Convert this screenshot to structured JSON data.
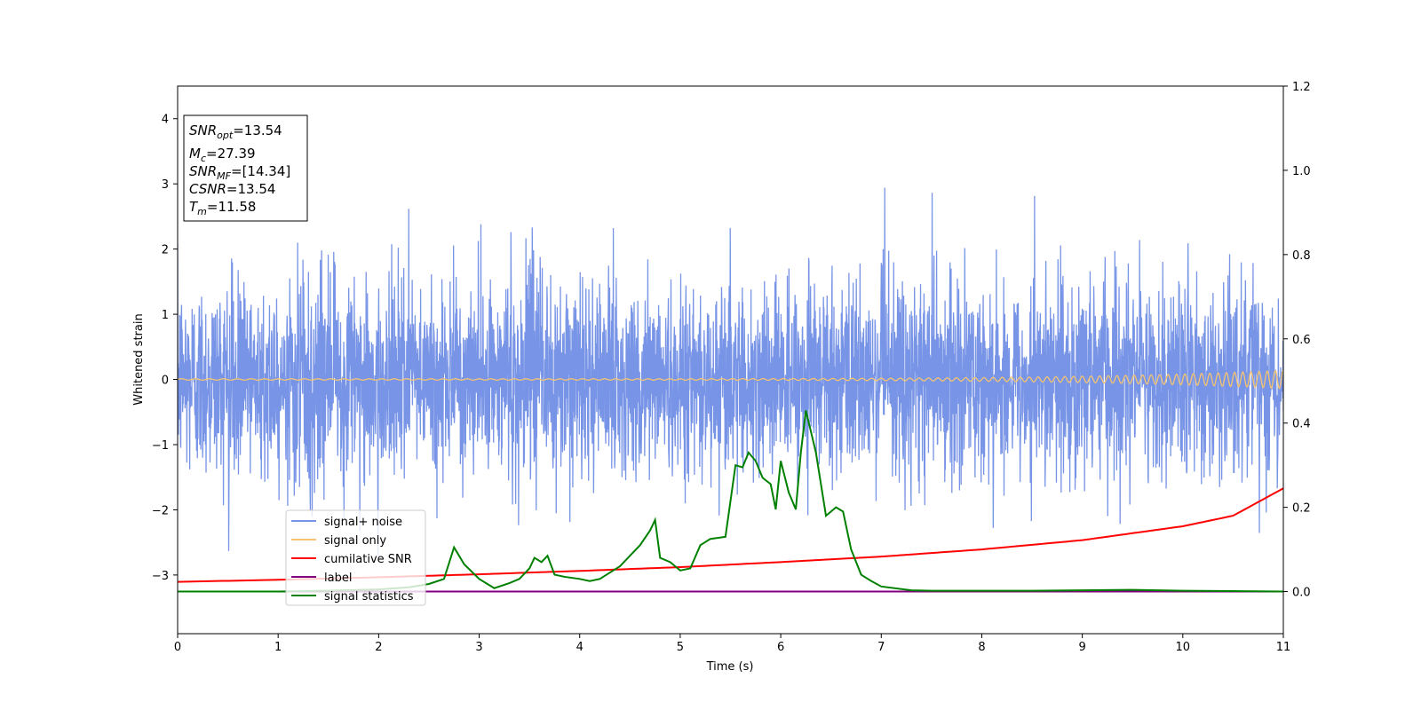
{
  "chart_data": {
    "type": "line",
    "xlabel": "Time (s)",
    "ylabel_left": "Whitened strain",
    "ylabel_right": "",
    "xlim": [
      0,
      11
    ],
    "ylim_left": [
      -3.9,
      4.5
    ],
    "ylim_right": [
      -0.1,
      1.2
    ],
    "x_ticks": [
      0,
      1,
      2,
      3,
      4,
      5,
      6,
      7,
      8,
      9,
      10,
      11
    ],
    "x_tick_labels": [
      "0",
      "1",
      "2",
      "3",
      "4",
      "5",
      "6",
      "7",
      "8",
      "9",
      "10",
      "11"
    ],
    "y_left_ticks": [
      -3,
      -2,
      -1,
      0,
      1,
      2,
      3,
      4
    ],
    "y_left_tick_labels": [
      "−3",
      "−2",
      "−1",
      "0",
      "1",
      "2",
      "3",
      "4"
    ],
    "y_right_ticks": [
      0.0,
      0.2,
      0.4,
      0.6,
      0.8,
      1.0,
      1.2
    ],
    "y_right_tick_labels": [
      "0.0",
      "0.2",
      "0.4",
      "0.6",
      "0.8",
      "1.0",
      "1.2"
    ],
    "grid": false,
    "legend_position": "lower-left",
    "annotation": {
      "lines": [
        {
          "sym": "SNR",
          "sub": "opt",
          "value": "=13.54"
        },
        {
          "sym": "M",
          "sub": "c",
          "value": "=27.39"
        },
        {
          "sym": "SNR",
          "sub": "MF",
          "value": "=[14.34]"
        },
        {
          "sym": "CSNR",
          "sub": "",
          "value": "=13.54"
        },
        {
          "sym": "T",
          "sub": "m",
          "value": "=11.58"
        }
      ]
    },
    "series": [
      {
        "name": "signal+ noise",
        "axis": "left",
        "color": "#7894e6",
        "kind": "noise",
        "std": 0.75,
        "approx_range": [
          -2.9,
          3.0
        ]
      },
      {
        "name": "signal only",
        "axis": "left",
        "color": "#f5c470",
        "kind": "chirp",
        "amplitude_start": 0.01,
        "amplitude_end": 0.14
      },
      {
        "name": "cumilative SNR",
        "axis": "right",
        "color": "#ff0000",
        "x": [
          0,
          1,
          2,
          3,
          4,
          5,
          6,
          7,
          8,
          9,
          10,
          10.5,
          11
        ],
        "y": [
          0.023,
          0.028,
          0.034,
          0.041,
          0.049,
          0.058,
          0.07,
          0.083,
          0.1,
          0.122,
          0.155,
          0.18,
          0.245
        ]
      },
      {
        "name": "label",
        "axis": "right",
        "color": "#800080",
        "x": [
          0,
          11
        ],
        "y": [
          0.0,
          0.0
        ]
      },
      {
        "name": "signal statistics",
        "axis": "right",
        "color": "#008000",
        "x": [
          0,
          0.5,
          1.0,
          1.5,
          2.0,
          2.3,
          2.5,
          2.65,
          2.75,
          2.85,
          3.0,
          3.15,
          3.3,
          3.4,
          3.5,
          3.55,
          3.62,
          3.68,
          3.75,
          3.85,
          4.0,
          4.1,
          4.2,
          4.3,
          4.4,
          4.5,
          4.6,
          4.7,
          4.75,
          4.8,
          4.9,
          5.0,
          5.1,
          5.2,
          5.3,
          5.45,
          5.55,
          5.62,
          5.68,
          5.75,
          5.82,
          5.9,
          5.95,
          6.0,
          6.08,
          6.15,
          6.2,
          6.25,
          6.35,
          6.45,
          6.55,
          6.62,
          6.7,
          6.8,
          6.9,
          7.0,
          7.3,
          7.5,
          8.0,
          8.5,
          9.0,
          9.5,
          10.0,
          10.5,
          11.0
        ],
        "y": [
          0.0,
          0.0,
          0.0,
          0.002,
          0.005,
          0.01,
          0.018,
          0.03,
          0.105,
          0.065,
          0.03,
          0.008,
          0.02,
          0.03,
          0.055,
          0.08,
          0.07,
          0.085,
          0.04,
          0.035,
          0.03,
          0.025,
          0.03,
          0.045,
          0.06,
          0.085,
          0.11,
          0.145,
          0.17,
          0.08,
          0.07,
          0.05,
          0.055,
          0.11,
          0.125,
          0.13,
          0.3,
          0.295,
          0.33,
          0.31,
          0.27,
          0.255,
          0.195,
          0.31,
          0.235,
          0.195,
          0.33,
          0.43,
          0.33,
          0.18,
          0.2,
          0.19,
          0.1,
          0.04,
          0.025,
          0.012,
          0.003,
          0.002,
          0.002,
          0.002,
          0.003,
          0.004,
          0.002,
          0.001,
          0.0
        ]
      }
    ]
  }
}
